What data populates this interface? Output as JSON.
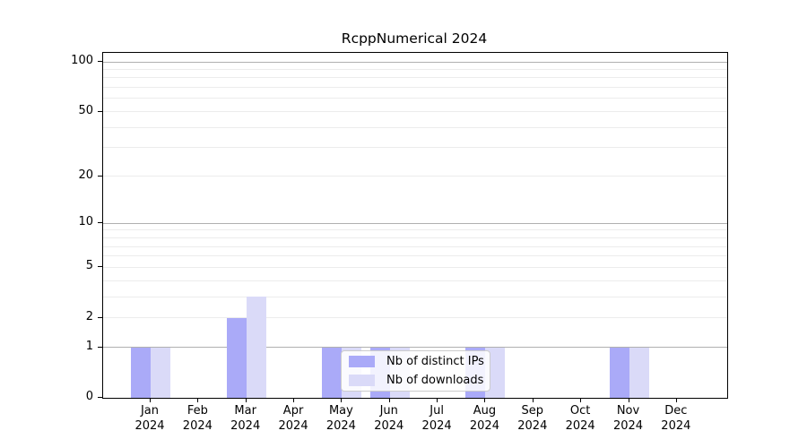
{
  "title": "RcppNumerical 2024",
  "colors": {
    "ips_bar": "#aaaaf8",
    "downloads_bar": "#dadaf8",
    "grid_major": "#b0b0b0",
    "grid_minor": "#ececec",
    "axis": "#000000",
    "legend_border": "#cccccc"
  },
  "legend": {
    "items": [
      {
        "label": "Nb of distinct IPs",
        "color": "#aaaaf8"
      },
      {
        "label": "Nb of downloads",
        "color": "#dadaf8"
      }
    ]
  },
  "chart_data": {
    "type": "bar",
    "title": "RcppNumerical 2024",
    "categories": [
      "Jan 2024",
      "Feb 2024",
      "Mar 2024",
      "Apr 2024",
      "May 2024",
      "Jun 2024",
      "Jul 2024",
      "Aug 2024",
      "Sep 2024",
      "Oct 2024",
      "Nov 2024",
      "Dec 2024"
    ],
    "x_months": [
      "Jan",
      "Feb",
      "Mar",
      "Apr",
      "May",
      "Jun",
      "Jul",
      "Aug",
      "Sep",
      "Oct",
      "Nov",
      "Dec"
    ],
    "x_year": "2024",
    "series": [
      {
        "name": "Nb of distinct IPs",
        "color": "#aaaaf8",
        "values": [
          1,
          0,
          2,
          0,
          1,
          1,
          0,
          1,
          0,
          0,
          1,
          0
        ]
      },
      {
        "name": "Nb of downloads",
        "color": "#dadaf8",
        "values": [
          1,
          0,
          3,
          0,
          1,
          1,
          0,
          1,
          0,
          0,
          1,
          0
        ]
      }
    ],
    "yscale": "log1p",
    "ylim": [
      0,
      115
    ],
    "y_tick_labels": [
      "100",
      "50",
      "20",
      "10",
      "5",
      "2",
      "1",
      "0"
    ],
    "y_tick_values": [
      100,
      50,
      20,
      10,
      5,
      2,
      1,
      0
    ],
    "y_grid_major": [
      1,
      10,
      100
    ],
    "y_grid_minor": [
      2,
      3,
      4,
      5,
      6,
      7,
      8,
      9,
      20,
      30,
      40,
      50,
      60,
      70,
      80,
      90
    ],
    "grid": true,
    "legend_position": "inside-bottom-center"
  }
}
